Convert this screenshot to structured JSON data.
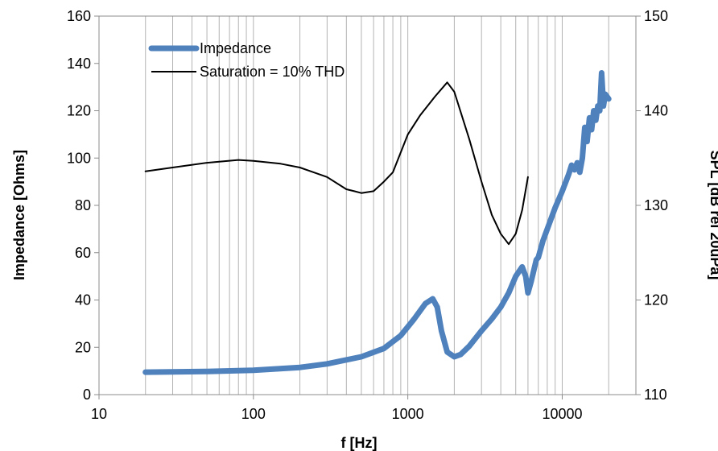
{
  "chart_data": {
    "type": "line",
    "xlabel": "f [Hz]",
    "ylabel": "Impedance [Ohms]",
    "y2label": "SPL [dB rel 20uPa]",
    "x_scale": "log",
    "xlim": [
      10,
      30000
    ],
    "ylim": [
      0,
      160
    ],
    "y2lim": [
      110,
      150
    ],
    "x_ticks": [
      "10",
      "100",
      "1000",
      "10000"
    ],
    "y_ticks": [
      "0",
      "20",
      "40",
      "60",
      "80",
      "100",
      "120",
      "140",
      "160"
    ],
    "y2_ticks": [
      "110",
      "120",
      "130",
      "140",
      "150"
    ],
    "grid": "vertical log gridlines",
    "legend_position": "top-left",
    "series": [
      {
        "name": "Impedance",
        "axis": "left",
        "color": "#4f81bd",
        "x": [
          20,
          50,
          100,
          200,
          300,
          500,
          700,
          900,
          1100,
          1300,
          1450,
          1550,
          1650,
          1800,
          2000,
          2200,
          2500,
          3000,
          3500,
          4000,
          4500,
          5000,
          5500,
          5800,
          6000,
          6300,
          6800,
          7000,
          7500,
          8000,
          9000,
          10000,
          11000,
          11500,
          12000,
          12500,
          13000,
          13500,
          14000,
          14500,
          15000,
          15500,
          16000,
          16500,
          17000,
          17500,
          18000,
          18500,
          19000,
          20000
        ],
        "y": [
          9.5,
          9.8,
          10.3,
          11.5,
          13,
          16,
          19.5,
          25,
          32,
          38.5,
          40.5,
          37,
          27,
          18,
          16,
          17,
          20.5,
          27,
          32,
          37,
          43,
          50,
          54,
          50,
          43,
          48,
          57,
          58,
          65,
          70,
          79,
          86,
          93,
          97,
          95,
          98,
          94,
          100,
          113,
          107,
          117,
          112,
          120,
          116,
          122,
          120,
          136,
          122,
          127,
          125
        ]
      },
      {
        "name": "Saturation = 10% THD",
        "axis": "right",
        "color": "#000000",
        "x": [
          20,
          30,
          50,
          80,
          100,
          150,
          200,
          300,
          400,
          450,
          500,
          600,
          700,
          800,
          1000,
          1200,
          1500,
          1800,
          2000,
          2500,
          3000,
          3500,
          4000,
          4500,
          5000,
          5500,
          6000
        ],
        "y": [
          133.6,
          134,
          134.5,
          134.8,
          134.7,
          134.4,
          134,
          133,
          131.7,
          131.5,
          131.3,
          131.5,
          132.5,
          133.5,
          137.5,
          139.5,
          141.5,
          143,
          142,
          137,
          132.5,
          129,
          127,
          125.9,
          127,
          129.5,
          133
        ]
      }
    ]
  }
}
